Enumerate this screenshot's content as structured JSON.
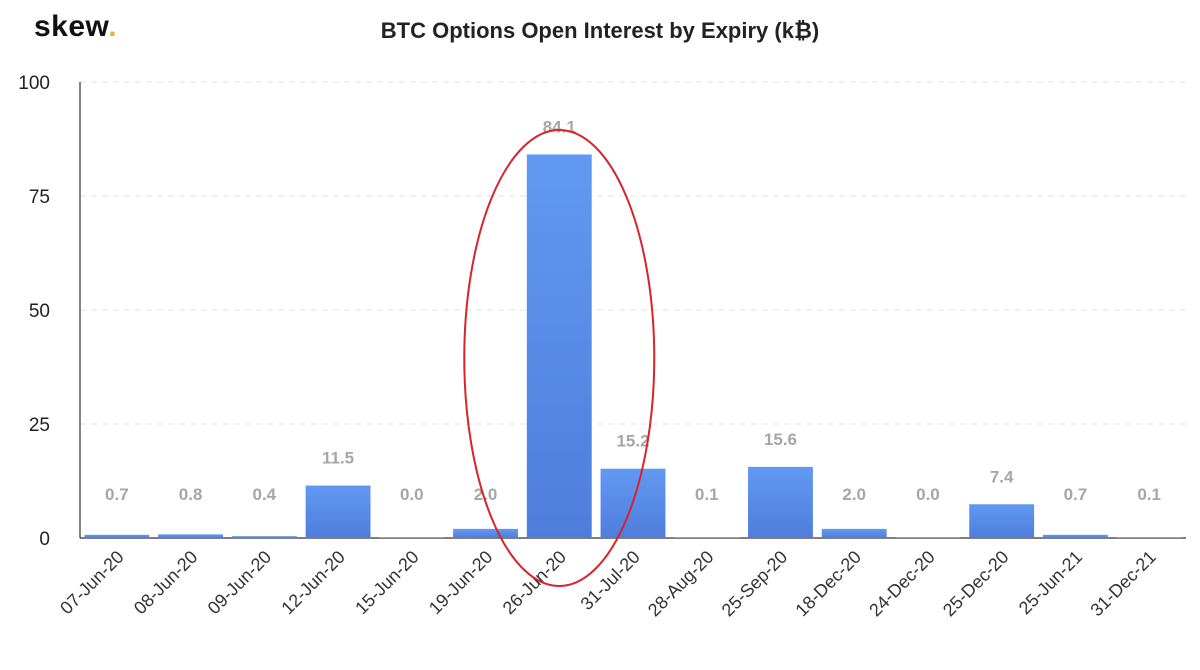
{
  "brand": {
    "logo_text": "skew",
    "logo_dot": "."
  },
  "colors": {
    "bar": "#5b8def",
    "bar_dark": "#4a76d6",
    "grid": "#e2e2e2",
    "highlight": "#d8232a",
    "label": "#a6a6a6"
  },
  "chart_data": {
    "type": "bar",
    "title": "BTC Options Open Interest by Expiry (k₿)",
    "xlabel": "",
    "ylabel": "",
    "categories": [
      "07-Jun-20",
      "08-Jun-20",
      "09-Jun-20",
      "12-Jun-20",
      "15-Jun-20",
      "19-Jun-20",
      "26-Jun-20",
      "31-Jul-20",
      "28-Aug-20",
      "25-Sep-20",
      "18-Dec-20",
      "24-Dec-20",
      "25-Dec-20",
      "25-Jun-21",
      "31-Dec-21"
    ],
    "values": [
      0.7,
      0.8,
      0.4,
      11.5,
      0.0,
      2.0,
      84.1,
      15.2,
      0.1,
      15.6,
      2.0,
      0.0,
      7.4,
      0.7,
      0.1
    ],
    "data_labels": [
      "0.7",
      "0.8",
      "0.4",
      "11.5",
      "0.0",
      "2.0",
      "84.1",
      "15.2",
      "0.1",
      "15.6",
      "2.0",
      "0.0",
      "7.4",
      "0.7",
      "0.1"
    ],
    "yticks": [
      "0",
      "25",
      "50",
      "75",
      "100"
    ],
    "ylim": [
      0,
      100
    ],
    "grid": true,
    "legend": "none",
    "highlight": {
      "shape": "ellipse",
      "around": "26-Jun-20"
    }
  }
}
